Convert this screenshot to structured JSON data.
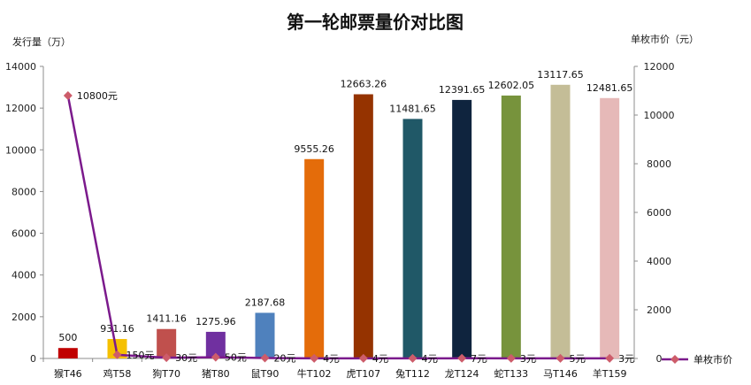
{
  "chart_data": {
    "type": "bar",
    "title": "第一轮邮票量价对比图",
    "ylabel": "发行量（万）",
    "y2label": "单枚市价（元）",
    "ylim": [
      0,
      14000
    ],
    "y2lim": [
      0,
      12000
    ],
    "yticks": [
      "0",
      "2000",
      "4000",
      "6000",
      "8000",
      "10000",
      "12000",
      "14000"
    ],
    "y2ticks": [
      "0",
      "2000",
      "4000",
      "6000",
      "8000",
      "10000",
      "12000"
    ],
    "categories": [
      "猴T46",
      "鸡T58",
      "狗T70",
      "猪T80",
      "鼠T90",
      "牛T102",
      "虎T107",
      "兔T112",
      "龙T124",
      "蛇T133",
      "马T146",
      "羊T159"
    ],
    "series": [
      {
        "name": "发行量",
        "axis": "left",
        "type": "bar",
        "values": [
          500,
          931.16,
          1411.16,
          1275.96,
          2187.68,
          9555.26,
          12663.26,
          11481.65,
          12391.65,
          12602.05,
          13117.65,
          12481.65
        ],
        "labels": [
          "500",
          "931.16",
          "1411.16",
          "1275.96",
          "2187.68",
          "9555.26",
          "12663.26",
          "11481.65",
          "12391.65",
          "12602.05",
          "13117.65",
          "12481.65"
        ],
        "colors": [
          "#c00000",
          "#f5c000",
          "#c0504d",
          "#7030a0",
          "#4f81bd",
          "#e46c0a",
          "#953300",
          "#205867",
          "#0f243e",
          "#77933c",
          "#c4bd97",
          "#e6b9b8"
        ]
      },
      {
        "name": "单枚市价",
        "axis": "right",
        "type": "line",
        "values": [
          10800,
          150,
          30,
          50,
          20,
          4,
          4,
          4,
          7,
          3,
          5,
          3
        ],
        "labels": [
          "10800元",
          "150元",
          "30元",
          "50元",
          "20元",
          "4元",
          "4元",
          "4元",
          "7元",
          "3元",
          "5元",
          "3元"
        ],
        "line_color": "#7b1a8c",
        "marker_color": "#cd5c6a"
      }
    ],
    "legend": {
      "label": "单枚市价",
      "position": "right"
    }
  }
}
